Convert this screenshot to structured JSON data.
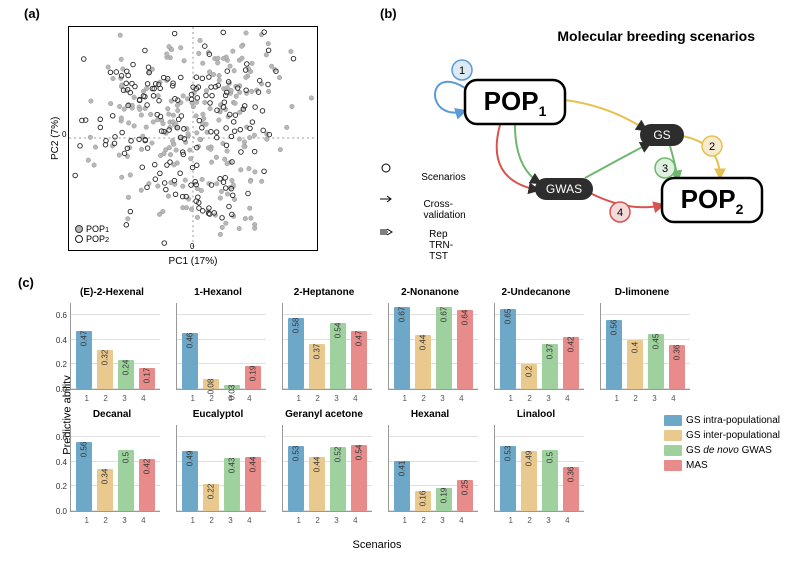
{
  "panels": {
    "a": "(a)",
    "b": "(b)",
    "c": "(c)"
  },
  "scatter": {
    "xlabel": "PC1 (17%)",
    "ylabel": "PC2 (7%)",
    "legend": [
      "POP",
      "POP"
    ],
    "legend_sub": [
      "1",
      "2"
    ],
    "pop1_color": "#b8b8b8",
    "pop2_stroke": "#222222",
    "pop2_fill": "rgba(255,255,255,0.3)",
    "n_points": 450
  },
  "flow": {
    "title": "Molecular breeding scenarios",
    "pop1": "POP",
    "pop2": "POP",
    "gs": "GS",
    "gwas": "GWAS",
    "legend_scen": "Scenarios",
    "legend_cv": "Cross-validation",
    "legend_rep": "Rep TRN-TST",
    "node_colors": {
      "1": "#6ea8c9",
      "2": "#e9c98e",
      "3": "#9ed19e",
      "4": "#e88b8b"
    },
    "edge_colors": {
      "blue": "#5b9bd5",
      "yellow": "#e6c14f",
      "green": "#6fb76f",
      "red": "#d9534f",
      "dark": "#2d2d2d"
    }
  },
  "charts": {
    "ylabel": "Predictive ability",
    "xlabel": "Scenarios",
    "ylim": [
      0,
      0.7
    ],
    "ytick_step": 0.2,
    "series_colors": [
      "#6ea8c9",
      "#e9c98e",
      "#9ed19e",
      "#e88b8b"
    ],
    "series_labels": [
      "GS intra-populational",
      "GS inter-populational",
      "GS de novo GWAS",
      "MAS"
    ],
    "series_labels_html": [
      "GS intra-populational",
      "GS inter-populational",
      "GS <i>de novo</i> GWAS",
      "MAS"
    ],
    "categories": [
      "1",
      "2",
      "3",
      "4"
    ],
    "items": [
      {
        "name": "(E)-2-Hexenal",
        "values": [
          0.47,
          0.32,
          0.24,
          0.17
        ]
      },
      {
        "name": "1-Hexanol",
        "values": [
          0.46,
          0.08,
          0.03,
          0.19
        ]
      },
      {
        "name": "2-Heptanone",
        "values": [
          0.58,
          0.37,
          0.54,
          0.47
        ]
      },
      {
        "name": "2-Nonanone",
        "values": [
          0.67,
          0.44,
          0.67,
          0.64
        ]
      },
      {
        "name": "2-Undecanone",
        "values": [
          0.65,
          0.2,
          0.37,
          0.42
        ]
      },
      {
        "name": "D-limonene",
        "values": [
          0.56,
          0.4,
          0.45,
          0.36
        ]
      },
      {
        "name": "Decanal",
        "values": [
          0.56,
          0.34,
          0.5,
          0.42
        ]
      },
      {
        "name": "Eucalyptol",
        "values": [
          0.49,
          0.22,
          0.43,
          0.44
        ]
      },
      {
        "name": "Geranyl  acetone",
        "values": [
          0.53,
          0.44,
          0.52,
          0.54
        ]
      },
      {
        "name": "Hexanal",
        "values": [
          0.41,
          0.16,
          0.19,
          0.25
        ]
      },
      {
        "name": "Linalool",
        "values": [
          0.53,
          0.49,
          0.5,
          0.36
        ]
      }
    ]
  }
}
